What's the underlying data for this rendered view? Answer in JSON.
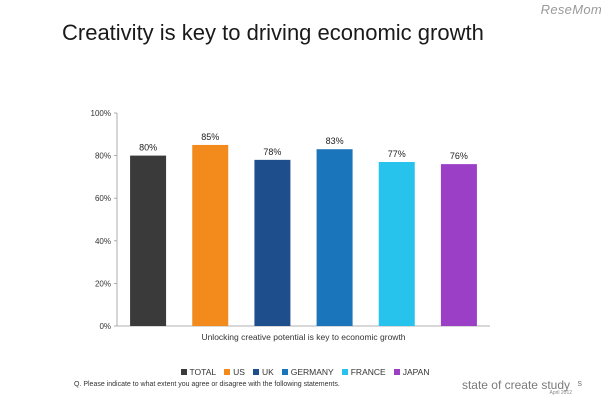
{
  "watermark": "ReseMom",
  "title": "Creativity is key to driving economic growth",
  "chart_data": {
    "type": "bar",
    "categories": [
      "TOTAL",
      "US",
      "UK",
      "GERMANY",
      "FRANCE",
      "JAPAN"
    ],
    "values": [
      80,
      85,
      78,
      83,
      77,
      76
    ],
    "value_labels": [
      "80%",
      "85%",
      "78%",
      "83%",
      "77%",
      "76%"
    ],
    "colors": [
      "#3a3a3a",
      "#f38a1c",
      "#1f4e8c",
      "#1b75bb",
      "#27c3ec",
      "#9b3fc7"
    ],
    "xlabel": "Unlocking creative potential is key to economic growth",
    "ylabel": "",
    "ylim": [
      0,
      100
    ],
    "yticks": [
      "0%",
      "20%",
      "40%",
      "60%",
      "80%",
      "100%"
    ],
    "grid": false,
    "legend": "bottom-center"
  },
  "note": "Q. Please indicate to what extent you agree or disagree with the following statements.",
  "brand": {
    "name": "state of create study",
    "suffix": "s",
    "date": "April 2012"
  }
}
